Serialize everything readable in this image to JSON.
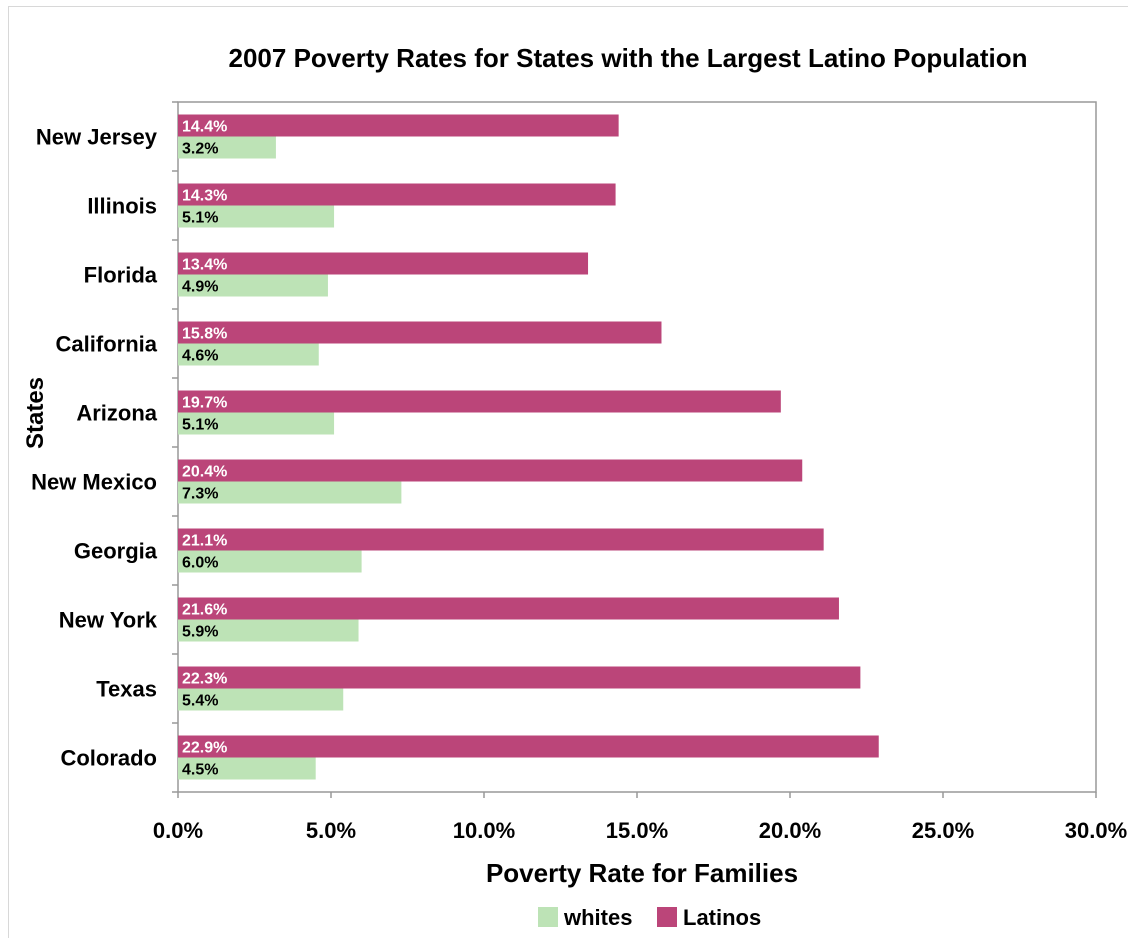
{
  "chart_data": {
    "type": "bar",
    "orientation": "horizontal",
    "title": "2007  Poverty Rates for States with the Largest Latino Population",
    "xlabel": "Poverty Rate for Families",
    "ylabel": "States",
    "categories": [
      "New Jersey",
      "Illinois",
      "Florida",
      "California",
      "Arizona",
      "New Mexico",
      "Georgia",
      "New York",
      "Texas",
      "Colorado"
    ],
    "series": [
      {
        "name": "Latinos",
        "color": "#bb4579",
        "values": [
          14.4,
          14.3,
          13.4,
          15.8,
          19.7,
          20.4,
          21.1,
          21.6,
          22.3,
          22.9
        ],
        "labels": [
          "14.4%",
          "14.3%",
          "13.4%",
          "15.8%",
          "19.7%",
          "20.4%",
          "21.1%",
          "21.6%",
          "22.3%",
          "22.9%"
        ]
      },
      {
        "name": "whites",
        "color": "#bde3b6",
        "values": [
          3.2,
          5.1,
          4.9,
          4.6,
          5.1,
          7.3,
          6.0,
          5.9,
          5.4,
          4.5
        ],
        "labels": [
          "3.2%",
          "5.1%",
          "4.9%",
          "4.6%",
          "5.1%",
          "7.3%",
          "6.0%",
          "5.9%",
          "5.4%",
          "4.5%"
        ]
      }
    ],
    "xlim": [
      0,
      30
    ],
    "xticks": [
      0,
      5,
      10,
      15,
      20,
      25,
      30
    ],
    "xtick_labels": [
      "0.0%",
      "5.0%",
      "10.0%",
      "15.0%",
      "20.0%",
      "25.0%",
      "30.0%"
    ],
    "grid": false,
    "legend": {
      "position": "bottom",
      "entries": [
        {
          "label": "whites",
          "color": "#bde3b6"
        },
        {
          "label": "Latinos",
          "color": "#bb4579"
        }
      ]
    }
  }
}
